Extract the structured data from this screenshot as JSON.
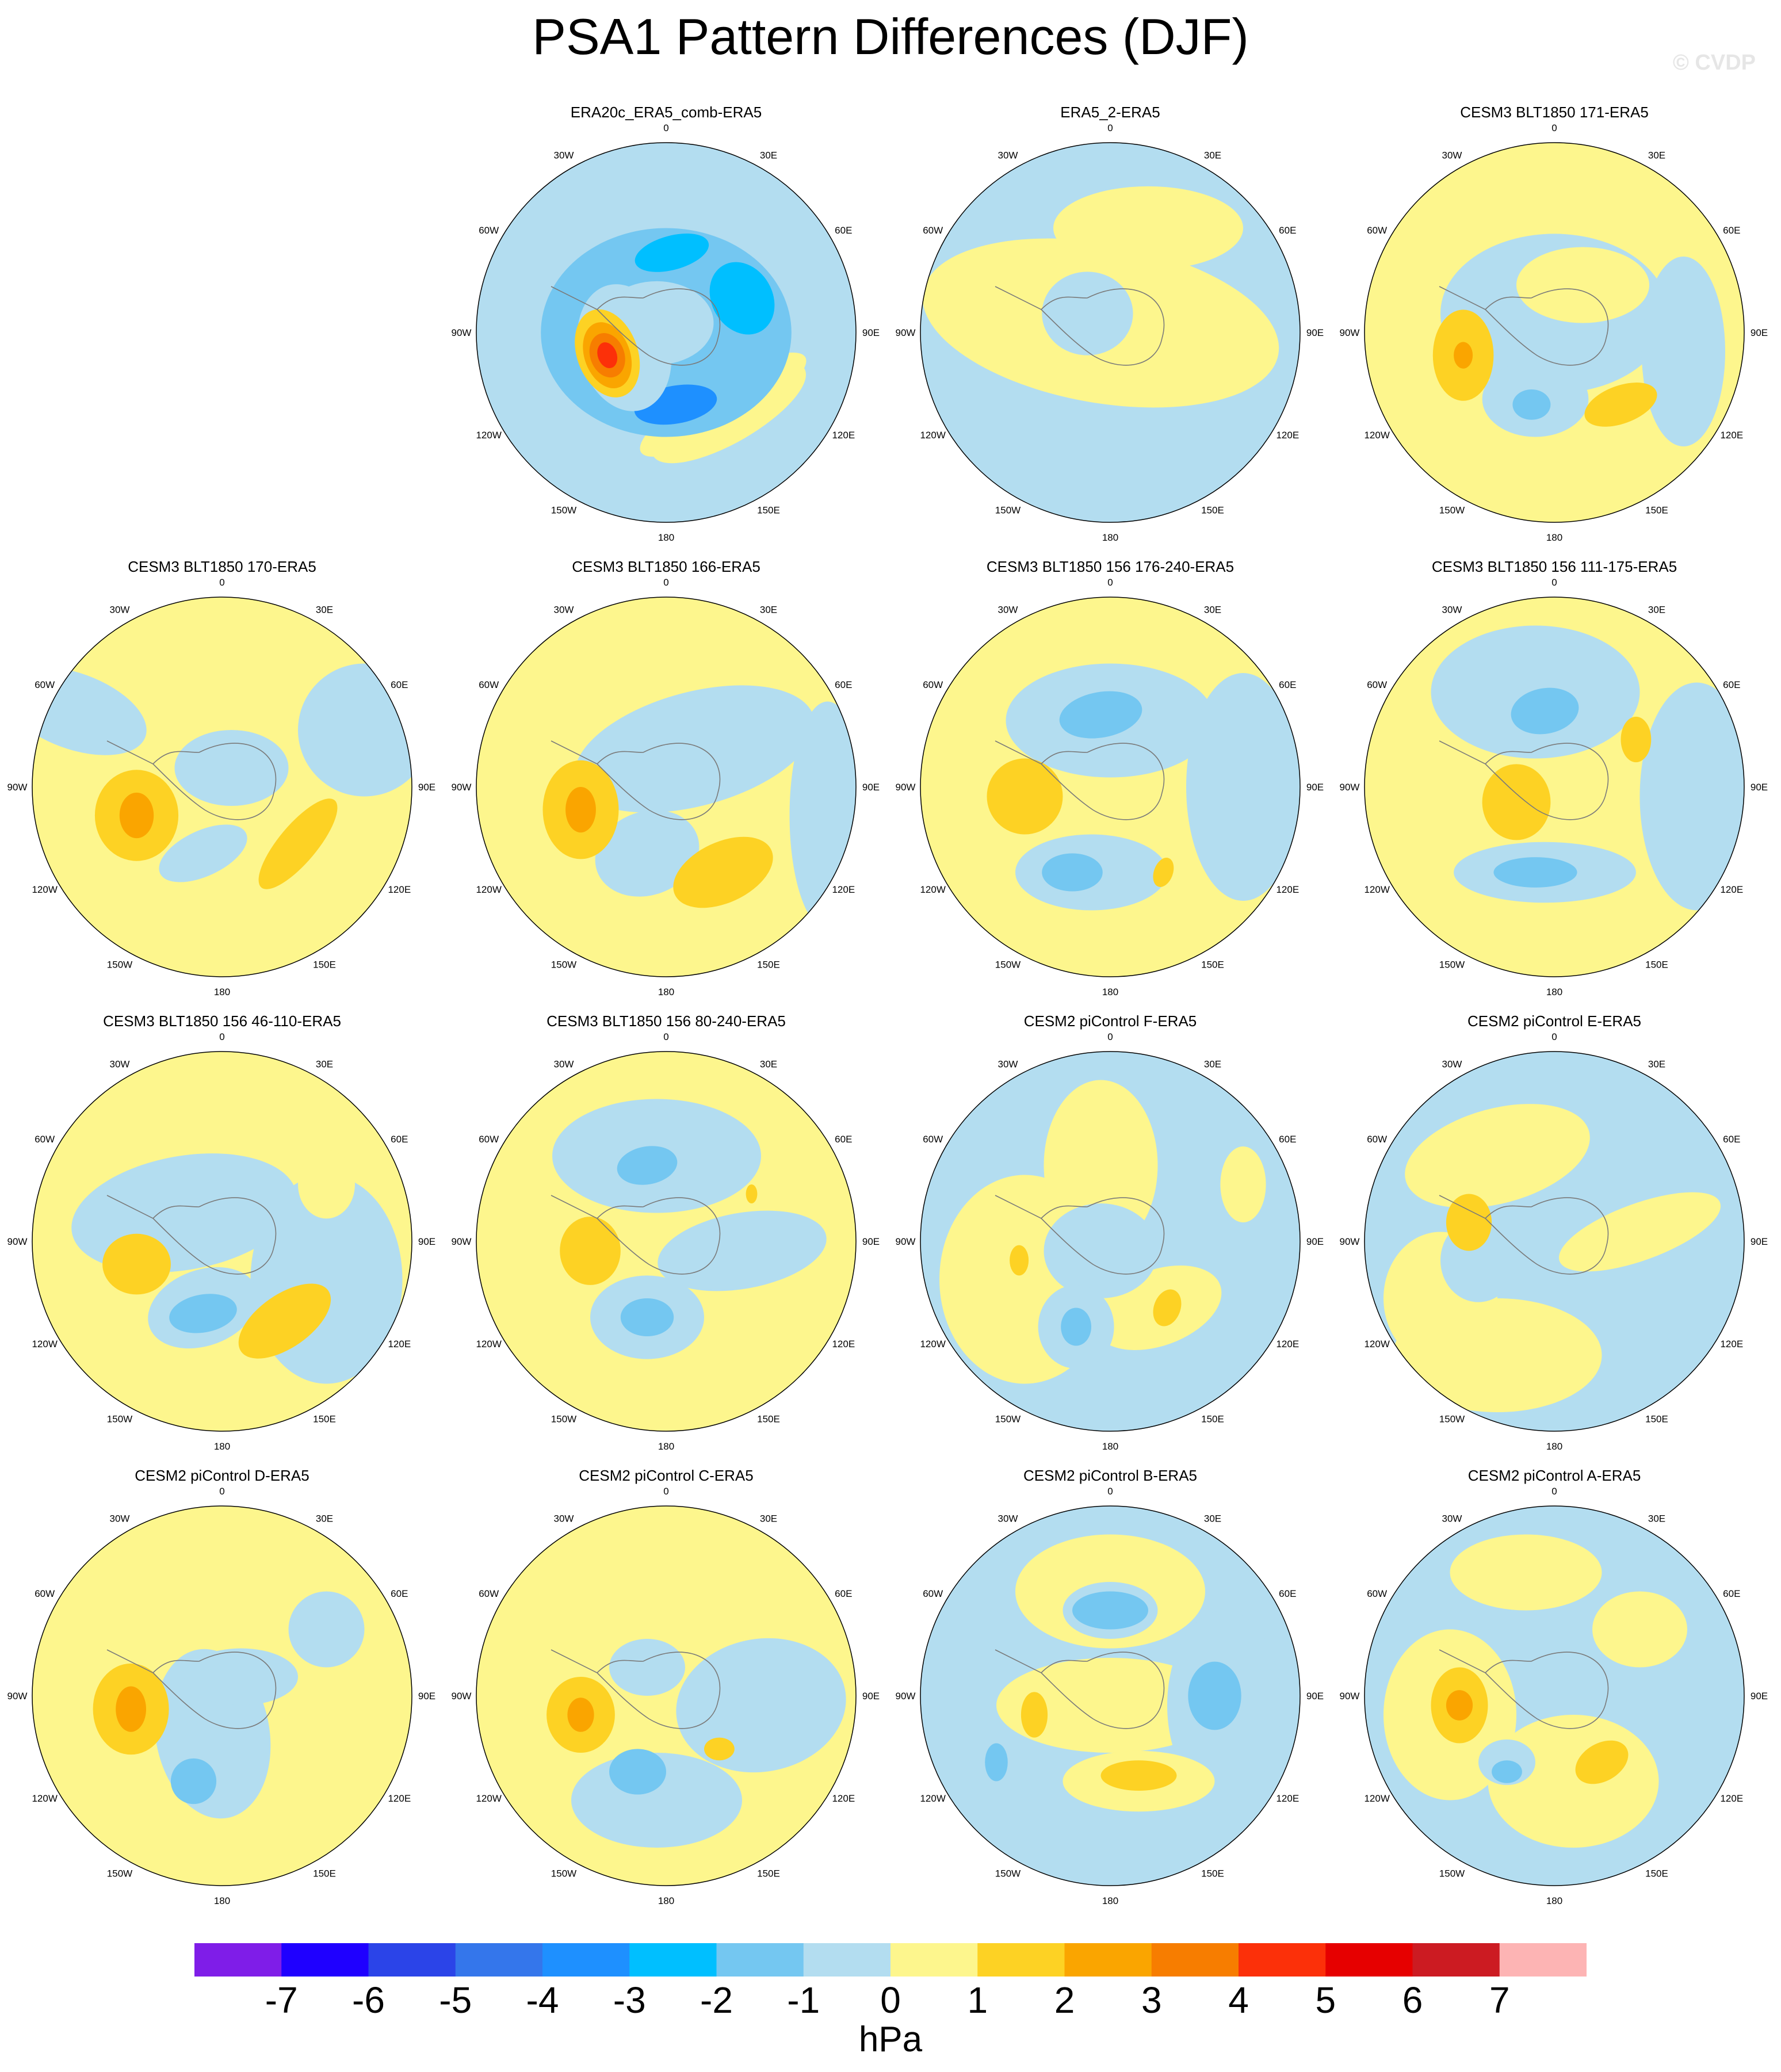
{
  "title": "PSA1 Pattern Differences (DJF)",
  "copyright": "© CVDP",
  "colorbar": {
    "units": "hPa",
    "labels": [
      "-7",
      "-6",
      "-5",
      "-4",
      "-3",
      "-2",
      "-1",
      "0",
      "1",
      "2",
      "3",
      "4",
      "5",
      "6",
      "7"
    ],
    "colors": [
      "#7f1de8",
      "#1f00ff",
      "#2b44e8",
      "#3476eb",
      "#1e90ff",
      "#00bfff",
      "#74c7f1",
      "#b3ddf0",
      "#fdf68d",
      "#fdd224",
      "#faa500",
      "#f77d00",
      "#fc3009",
      "#e60000",
      "#cc1b22",
      "#fdb4b4"
    ]
  },
  "longitude_labels": [
    "0",
    "30E",
    "60E",
    "90E",
    "120E",
    "150E",
    "180",
    "150W",
    "120W",
    "90W",
    "60W",
    "30W"
  ],
  "panels": [
    {
      "title": "ERA20c_ERA5_comb-ERA5",
      "bg": "#b3ddf0",
      "blobs": [
        {
          "dx": 0.33,
          "dy": 0.42,
          "rx": 0.46,
          "ry": 0.16,
          "rot": -30,
          "c": "#fdf68d"
        },
        {
          "dx": 0.3,
          "dy": 0.38,
          "rx": 0.5,
          "ry": 0.13,
          "rot": -30,
          "c": "#fdf68d"
        },
        {
          "dx": 0.0,
          "dy": 0.0,
          "rx": 0.66,
          "ry": 0.55,
          "rot": 0,
          "c": "#74c7f1"
        },
        {
          "dx": -0.05,
          "dy": -0.05,
          "rx": 0.3,
          "ry": 0.22,
          "rot": 0,
          "c": "#b3ddf0"
        },
        {
          "dx": 0.03,
          "dy": -0.42,
          "rx": 0.2,
          "ry": 0.09,
          "rot": -15,
          "c": "#00bfff"
        },
        {
          "dx": 0.4,
          "dy": -0.18,
          "rx": 0.16,
          "ry": 0.2,
          "rot": -30,
          "c": "#00bfff"
        },
        {
          "dx": 0.05,
          "dy": 0.38,
          "rx": 0.22,
          "ry": 0.1,
          "rot": -10,
          "c": "#1e90ff"
        },
        {
          "dx": -0.22,
          "dy": 0.08,
          "rx": 0.24,
          "ry": 0.34,
          "rot": -15,
          "c": "#b3ddf0"
        },
        {
          "dx": -0.31,
          "dy": 0.11,
          "rx": 0.16,
          "ry": 0.24,
          "rot": -20,
          "c": "#fdd224"
        },
        {
          "dx": -0.31,
          "dy": 0.12,
          "rx": 0.12,
          "ry": 0.18,
          "rot": -20,
          "c": "#faa500"
        },
        {
          "dx": -0.31,
          "dy": 0.12,
          "rx": 0.09,
          "ry": 0.12,
          "rot": -20,
          "c": "#f77d00"
        },
        {
          "dx": -0.31,
          "dy": 0.12,
          "rx": 0.05,
          "ry": 0.07,
          "rot": -20,
          "c": "#fc3009"
        }
      ]
    },
    {
      "title": "ERA5_2-ERA5",
      "bg": "#b3ddf0",
      "blobs": [
        {
          "dx": -0.05,
          "dy": -0.05,
          "rx": 0.95,
          "ry": 0.42,
          "rot": 10,
          "c": "#fdf68d"
        },
        {
          "dx": 0.2,
          "dy": -0.55,
          "rx": 0.5,
          "ry": 0.22,
          "rot": 0,
          "c": "#fdf68d"
        },
        {
          "dx": -0.12,
          "dy": -0.1,
          "rx": 0.24,
          "ry": 0.22,
          "rot": 0,
          "c": "#b3ddf0"
        }
      ]
    },
    {
      "title": "CESM3 BLT1850 171-ERA5",
      "bg": "#fdf68d",
      "blobs": [
        {
          "dx": 0.0,
          "dy": -0.1,
          "rx": 0.6,
          "ry": 0.42,
          "rot": 0,
          "c": "#b3ddf0"
        },
        {
          "dx": 0.15,
          "dy": -0.25,
          "rx": 0.35,
          "ry": 0.2,
          "rot": 0,
          "c": "#fdf68d"
        },
        {
          "dx": -0.1,
          "dy": 0.35,
          "rx": 0.28,
          "ry": 0.2,
          "rot": 0,
          "c": "#b3ddf0"
        },
        {
          "dx": -0.12,
          "dy": 0.38,
          "rx": 0.1,
          "ry": 0.08,
          "rot": 0,
          "c": "#74c7f1"
        },
        {
          "dx": 0.68,
          "dy": 0.1,
          "rx": 0.22,
          "ry": 0.5,
          "rot": 0,
          "c": "#b3ddf0"
        },
        {
          "dx": -0.48,
          "dy": 0.12,
          "rx": 0.16,
          "ry": 0.24,
          "rot": 0,
          "c": "#fdd224"
        },
        {
          "dx": -0.48,
          "dy": 0.12,
          "rx": 0.05,
          "ry": 0.07,
          "rot": 0,
          "c": "#faa500"
        },
        {
          "dx": 0.35,
          "dy": 0.38,
          "rx": 0.2,
          "ry": 0.1,
          "rot": -20,
          "c": "#fdd224"
        }
      ]
    },
    {
      "title": "CESM3 BLT1850 170-ERA5",
      "bg": "#fdf68d",
      "blobs": [
        {
          "dx": -0.78,
          "dy": -0.4,
          "rx": 0.4,
          "ry": 0.2,
          "rot": 20,
          "c": "#b3ddf0"
        },
        {
          "dx": 0.75,
          "dy": -0.3,
          "rx": 0.35,
          "ry": 0.35,
          "rot": 0,
          "c": "#b3ddf0"
        },
        {
          "dx": 0.05,
          "dy": -0.1,
          "rx": 0.3,
          "ry": 0.2,
          "rot": 0,
          "c": "#b3ddf0"
        },
        {
          "dx": -0.1,
          "dy": 0.35,
          "rx": 0.25,
          "ry": 0.12,
          "rot": -25,
          "c": "#b3ddf0"
        },
        {
          "dx": -0.45,
          "dy": 0.15,
          "rx": 0.22,
          "ry": 0.24,
          "rot": 0,
          "c": "#fdd224"
        },
        {
          "dx": -0.45,
          "dy": 0.15,
          "rx": 0.09,
          "ry": 0.12,
          "rot": 0,
          "c": "#faa500"
        },
        {
          "dx": 0.4,
          "dy": 0.3,
          "rx": 0.1,
          "ry": 0.3,
          "rot": 40,
          "c": "#fdd224"
        }
      ]
    },
    {
      "title": "CESM3 BLT1850 166-ERA5",
      "bg": "#fdf68d",
      "blobs": [
        {
          "dx": 0.15,
          "dy": -0.2,
          "rx": 0.65,
          "ry": 0.3,
          "rot": -15,
          "c": "#b3ddf0"
        },
        {
          "dx": 0.85,
          "dy": 0.15,
          "rx": 0.2,
          "ry": 0.6,
          "rot": 0,
          "c": "#b3ddf0"
        },
        {
          "dx": -0.1,
          "dy": 0.35,
          "rx": 0.28,
          "ry": 0.22,
          "rot": -20,
          "c": "#b3ddf0"
        },
        {
          "dx": -0.45,
          "dy": 0.12,
          "rx": 0.2,
          "ry": 0.26,
          "rot": 0,
          "c": "#fdd224"
        },
        {
          "dx": -0.45,
          "dy": 0.12,
          "rx": 0.08,
          "ry": 0.12,
          "rot": 0,
          "c": "#faa500"
        },
        {
          "dx": 0.3,
          "dy": 0.45,
          "rx": 0.28,
          "ry": 0.16,
          "rot": -25,
          "c": "#fdd224"
        }
      ]
    },
    {
      "title": "CESM3 BLT1850 156 176-240-ERA5",
      "bg": "#fdf68d",
      "blobs": [
        {
          "dx": 0.0,
          "dy": -0.35,
          "rx": 0.55,
          "ry": 0.3,
          "rot": 0,
          "c": "#b3ddf0"
        },
        {
          "dx": -0.05,
          "dy": -0.38,
          "rx": 0.22,
          "ry": 0.12,
          "rot": -10,
          "c": "#74c7f1"
        },
        {
          "dx": 0.7,
          "dy": 0.0,
          "rx": 0.3,
          "ry": 0.6,
          "rot": 0,
          "c": "#b3ddf0"
        },
        {
          "dx": -0.1,
          "dy": 0.45,
          "rx": 0.4,
          "ry": 0.2,
          "rot": 0,
          "c": "#b3ddf0"
        },
        {
          "dx": -0.2,
          "dy": 0.45,
          "rx": 0.16,
          "ry": 0.1,
          "rot": 0,
          "c": "#74c7f1"
        },
        {
          "dx": -0.45,
          "dy": 0.05,
          "rx": 0.2,
          "ry": 0.2,
          "rot": 0,
          "c": "#fdd224"
        },
        {
          "dx": 0.28,
          "dy": 0.45,
          "rx": 0.05,
          "ry": 0.08,
          "rot": 20,
          "c": "#fdd224"
        }
      ]
    },
    {
      "title": "CESM3 BLT1850 156 111-175-ERA5",
      "bg": "#fdf68d",
      "blobs": [
        {
          "dx": -0.1,
          "dy": -0.5,
          "rx": 0.55,
          "ry": 0.35,
          "rot": 0,
          "c": "#b3ddf0"
        },
        {
          "dx": -0.05,
          "dy": -0.4,
          "rx": 0.18,
          "ry": 0.12,
          "rot": -10,
          "c": "#74c7f1"
        },
        {
          "dx": 0.75,
          "dy": 0.05,
          "rx": 0.3,
          "ry": 0.6,
          "rot": 0,
          "c": "#b3ddf0"
        },
        {
          "dx": -0.05,
          "dy": 0.45,
          "rx": 0.48,
          "ry": 0.16,
          "rot": 0,
          "c": "#b3ddf0"
        },
        {
          "dx": -0.1,
          "dy": 0.45,
          "rx": 0.22,
          "ry": 0.08,
          "rot": 0,
          "c": "#74c7f1"
        },
        {
          "dx": -0.2,
          "dy": 0.08,
          "rx": 0.18,
          "ry": 0.2,
          "rot": 0,
          "c": "#fdd224"
        },
        {
          "dx": 0.43,
          "dy": -0.25,
          "rx": 0.08,
          "ry": 0.12,
          "rot": 0,
          "c": "#fdd224"
        }
      ]
    },
    {
      "title": "CESM3 BLT1850 156 46-110-ERA5",
      "bg": "#fdf68d",
      "blobs": [
        {
          "dx": -0.2,
          "dy": -0.15,
          "rx": 0.6,
          "ry": 0.3,
          "rot": -10,
          "c": "#b3ddf0"
        },
        {
          "dx": 0.55,
          "dy": 0.2,
          "rx": 0.4,
          "ry": 0.55,
          "rot": 0,
          "c": "#b3ddf0"
        },
        {
          "dx": 0.55,
          "dy": -0.3,
          "rx": 0.15,
          "ry": 0.18,
          "rot": 0,
          "c": "#fdf68d"
        },
        {
          "dx": -0.1,
          "dy": 0.35,
          "rx": 0.3,
          "ry": 0.2,
          "rot": -20,
          "c": "#b3ddf0"
        },
        {
          "dx": -0.1,
          "dy": 0.38,
          "rx": 0.18,
          "ry": 0.1,
          "rot": -10,
          "c": "#74c7f1"
        },
        {
          "dx": -0.45,
          "dy": 0.12,
          "rx": 0.18,
          "ry": 0.16,
          "rot": 0,
          "c": "#fdd224"
        },
        {
          "dx": 0.33,
          "dy": 0.42,
          "rx": 0.28,
          "ry": 0.14,
          "rot": -35,
          "c": "#fdd224"
        }
      ]
    },
    {
      "title": "CESM3 BLT1850 156 80-240-ERA5",
      "bg": "#fdf68d",
      "blobs": [
        {
          "dx": -0.05,
          "dy": -0.45,
          "rx": 0.55,
          "ry": 0.3,
          "rot": 0,
          "c": "#b3ddf0"
        },
        {
          "dx": -0.1,
          "dy": -0.4,
          "rx": 0.16,
          "ry": 0.1,
          "rot": -10,
          "c": "#74c7f1"
        },
        {
          "dx": 0.4,
          "dy": 0.05,
          "rx": 0.45,
          "ry": 0.2,
          "rot": -10,
          "c": "#b3ddf0"
        },
        {
          "dx": -0.1,
          "dy": 0.4,
          "rx": 0.3,
          "ry": 0.22,
          "rot": 0,
          "c": "#b3ddf0"
        },
        {
          "dx": -0.1,
          "dy": 0.4,
          "rx": 0.14,
          "ry": 0.1,
          "rot": 0,
          "c": "#74c7f1"
        },
        {
          "dx": -0.4,
          "dy": 0.05,
          "rx": 0.16,
          "ry": 0.18,
          "rot": 0,
          "c": "#fdd224"
        },
        {
          "dx": 0.45,
          "dy": -0.25,
          "rx": 0.03,
          "ry": 0.05,
          "rot": 0,
          "c": "#fdd224"
        }
      ]
    },
    {
      "title": "CESM2 piControl F-ERA5",
      "bg": "#b3ddf0",
      "blobs": [
        {
          "dx": -0.45,
          "dy": 0.2,
          "rx": 0.45,
          "ry": 0.55,
          "rot": 0,
          "c": "#fdf68d"
        },
        {
          "dx": -0.05,
          "dy": -0.4,
          "rx": 0.3,
          "ry": 0.45,
          "rot": 0,
          "c": "#fdf68d"
        },
        {
          "dx": 0.7,
          "dy": -0.3,
          "rx": 0.12,
          "ry": 0.2,
          "rot": 0,
          "c": "#fdf68d"
        },
        {
          "dx": 0.25,
          "dy": 0.35,
          "rx": 0.35,
          "ry": 0.2,
          "rot": -20,
          "c": "#fdf68d"
        },
        {
          "dx": -0.05,
          "dy": 0.05,
          "rx": 0.3,
          "ry": 0.25,
          "rot": 0,
          "c": "#b3ddf0"
        },
        {
          "dx": -0.18,
          "dy": 0.45,
          "rx": 0.2,
          "ry": 0.22,
          "rot": 0,
          "c": "#b3ddf0"
        },
        {
          "dx": -0.18,
          "dy": 0.45,
          "rx": 0.08,
          "ry": 0.1,
          "rot": 0,
          "c": "#74c7f1"
        },
        {
          "dx": 0.3,
          "dy": 0.35,
          "rx": 0.07,
          "ry": 0.1,
          "rot": 20,
          "c": "#fdd224"
        },
        {
          "dx": -0.48,
          "dy": 0.1,
          "rx": 0.05,
          "ry": 0.08,
          "rot": 0,
          "c": "#fdd224"
        }
      ]
    },
    {
      "title": "CESM2 piControl E-ERA5",
      "bg": "#b3ddf0",
      "blobs": [
        {
          "dx": -0.3,
          "dy": -0.45,
          "rx": 0.5,
          "ry": 0.25,
          "rot": -15,
          "c": "#fdf68d"
        },
        {
          "dx": 0.45,
          "dy": -0.05,
          "rx": 0.45,
          "ry": 0.15,
          "rot": -20,
          "c": "#fdf68d"
        },
        {
          "dx": -0.3,
          "dy": 0.6,
          "rx": 0.55,
          "ry": 0.3,
          "rot": 0,
          "c": "#fdf68d"
        },
        {
          "dx": -0.6,
          "dy": 0.3,
          "rx": 0.3,
          "ry": 0.35,
          "rot": 0,
          "c": "#fdf68d"
        },
        {
          "dx": -0.4,
          "dy": 0.1,
          "rx": 0.2,
          "ry": 0.22,
          "rot": 0,
          "c": "#b3ddf0"
        },
        {
          "dx": -0.45,
          "dy": -0.1,
          "rx": 0.12,
          "ry": 0.15,
          "rot": 0,
          "c": "#fdd224"
        }
      ]
    },
    {
      "title": "CESM2 piControl D-ERA5",
      "bg": "#fdf68d",
      "blobs": [
        {
          "dx": -0.05,
          "dy": 0.2,
          "rx": 0.3,
          "ry": 0.45,
          "rot": -10,
          "c": "#b3ddf0"
        },
        {
          "dx": 0.55,
          "dy": -0.35,
          "rx": 0.2,
          "ry": 0.2,
          "rot": 0,
          "c": "#b3ddf0"
        },
        {
          "dx": 0.1,
          "dy": -0.1,
          "rx": 0.3,
          "ry": 0.15,
          "rot": 0,
          "c": "#b3ddf0"
        },
        {
          "dx": -0.15,
          "dy": 0.45,
          "rx": 0.12,
          "ry": 0.12,
          "rot": 0,
          "c": "#74c7f1"
        },
        {
          "dx": -0.48,
          "dy": 0.07,
          "rx": 0.2,
          "ry": 0.24,
          "rot": 0,
          "c": "#fdd224"
        },
        {
          "dx": -0.48,
          "dy": 0.07,
          "rx": 0.08,
          "ry": 0.12,
          "rot": 0,
          "c": "#faa500"
        }
      ]
    },
    {
      "title": "CESM2 piControl C-ERA5",
      "bg": "#fdf68d",
      "blobs": [
        {
          "dx": -0.05,
          "dy": 0.55,
          "rx": 0.45,
          "ry": 0.25,
          "rot": 0,
          "c": "#b3ddf0"
        },
        {
          "dx": 0.5,
          "dy": 0.05,
          "rx": 0.45,
          "ry": 0.35,
          "rot": -10,
          "c": "#b3ddf0"
        },
        {
          "dx": -0.1,
          "dy": -0.15,
          "rx": 0.2,
          "ry": 0.15,
          "rot": 0,
          "c": "#b3ddf0"
        },
        {
          "dx": -0.15,
          "dy": 0.4,
          "rx": 0.15,
          "ry": 0.12,
          "rot": 0,
          "c": "#74c7f1"
        },
        {
          "dx": -0.45,
          "dy": 0.1,
          "rx": 0.18,
          "ry": 0.2,
          "rot": 0,
          "c": "#fdd224"
        },
        {
          "dx": -0.45,
          "dy": 0.1,
          "rx": 0.07,
          "ry": 0.09,
          "rot": 0,
          "c": "#faa500"
        },
        {
          "dx": 0.28,
          "dy": 0.28,
          "rx": 0.08,
          "ry": 0.06,
          "rot": 0,
          "c": "#fdd224"
        }
      ]
    },
    {
      "title": "CESM2 piControl B-ERA5",
      "bg": "#b3ddf0",
      "blobs": [
        {
          "dx": 0.0,
          "dy": 0.05,
          "rx": 0.6,
          "ry": 0.25,
          "rot": 0,
          "c": "#fdf68d"
        },
        {
          "dx": 0.0,
          "dy": -0.55,
          "rx": 0.5,
          "ry": 0.3,
          "rot": 0,
          "c": "#fdf68d"
        },
        {
          "dx": 0.0,
          "dy": -0.45,
          "rx": 0.25,
          "ry": 0.15,
          "rot": 0,
          "c": "#b3ddf0"
        },
        {
          "dx": 0.0,
          "dy": -0.45,
          "rx": 0.2,
          "ry": 0.1,
          "rot": 0,
          "c": "#74c7f1"
        },
        {
          "dx": 0.6,
          "dy": 0.05,
          "rx": 0.3,
          "ry": 0.5,
          "rot": 0,
          "c": "#b3ddf0"
        },
        {
          "dx": 0.55,
          "dy": 0.0,
          "rx": 0.14,
          "ry": 0.18,
          "rot": 0,
          "c": "#74c7f1"
        },
        {
          "dx": 0.15,
          "dy": 0.45,
          "rx": 0.4,
          "ry": 0.16,
          "rot": 0,
          "c": "#fdf68d"
        },
        {
          "dx": 0.15,
          "dy": 0.42,
          "rx": 0.2,
          "ry": 0.08,
          "rot": 0,
          "c": "#fdd224"
        },
        {
          "dx": -0.4,
          "dy": 0.1,
          "rx": 0.07,
          "ry": 0.12,
          "rot": 0,
          "c": "#fdd224"
        },
        {
          "dx": -0.6,
          "dy": 0.35,
          "rx": 0.06,
          "ry": 0.1,
          "rot": 0,
          "c": "#74c7f1"
        }
      ]
    },
    {
      "title": "CESM2 piControl A-ERA5",
      "bg": "#b3ddf0",
      "blobs": [
        {
          "dx": -0.55,
          "dy": 0.1,
          "rx": 0.35,
          "ry": 0.45,
          "rot": 0,
          "c": "#fdf68d"
        },
        {
          "dx": 0.1,
          "dy": 0.45,
          "rx": 0.45,
          "ry": 0.35,
          "rot": 0,
          "c": "#fdf68d"
        },
        {
          "dx": -0.15,
          "dy": -0.65,
          "rx": 0.4,
          "ry": 0.2,
          "rot": 0,
          "c": "#fdf68d"
        },
        {
          "dx": 0.45,
          "dy": -0.35,
          "rx": 0.25,
          "ry": 0.2,
          "rot": 0,
          "c": "#fdf68d"
        },
        {
          "dx": -0.25,
          "dy": 0.35,
          "rx": 0.15,
          "ry": 0.12,
          "rot": 0,
          "c": "#b3ddf0"
        },
        {
          "dx": -0.25,
          "dy": 0.4,
          "rx": 0.08,
          "ry": 0.06,
          "rot": 0,
          "c": "#74c7f1"
        },
        {
          "dx": -0.5,
          "dy": 0.05,
          "rx": 0.15,
          "ry": 0.2,
          "rot": 0,
          "c": "#fdd224"
        },
        {
          "dx": -0.5,
          "dy": 0.05,
          "rx": 0.07,
          "ry": 0.08,
          "rot": 0,
          "c": "#faa500"
        },
        {
          "dx": 0.25,
          "dy": 0.35,
          "rx": 0.15,
          "ry": 0.1,
          "rot": -30,
          "c": "#fdd224"
        }
      ]
    }
  ]
}
